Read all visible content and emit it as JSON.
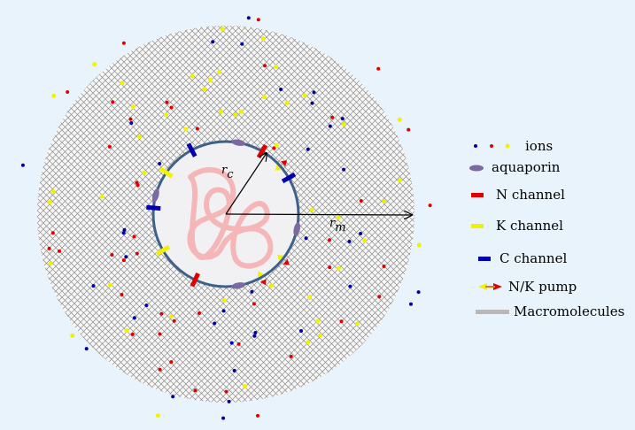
{
  "radius_labels": [
    {
      "main": "r",
      "sub": "c"
    },
    {
      "main": "r",
      "sub": "m"
    }
  ],
  "legend": [
    "ions",
    "aquaporin",
    "N channel",
    "K channel",
    "C channel",
    "N/K pump",
    "Macromolecules"
  ]
}
